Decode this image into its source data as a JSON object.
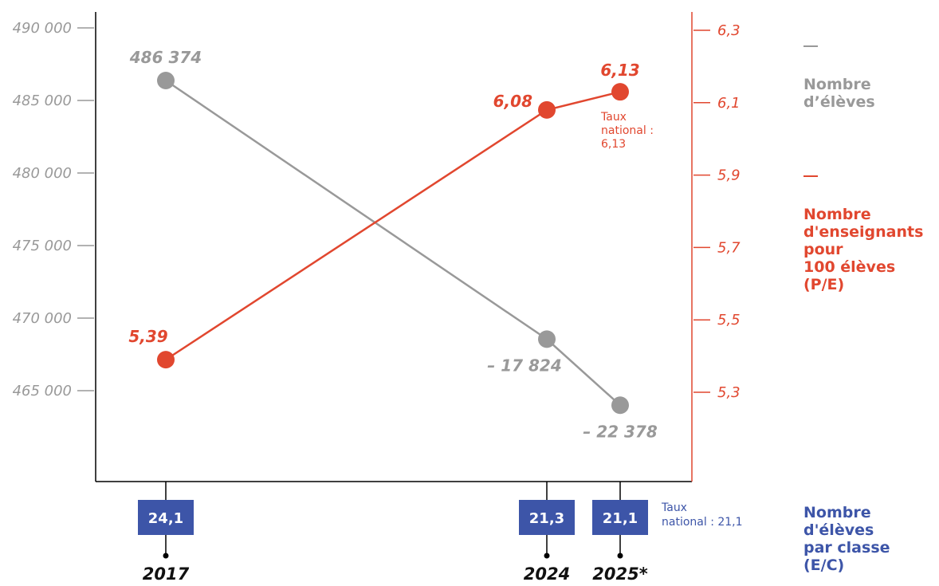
{
  "chart_data": {
    "type": "line",
    "x": [
      "2017",
      "2024",
      "2025*"
    ],
    "series": [
      {
        "name": "Nombre d’élèves",
        "axis": "left",
        "color": "#999999",
        "values": [
          486374,
          468550,
          463996
        ],
        "labels": [
          "486 374",
          "– 17 824",
          "– 22 378"
        ]
      },
      {
        "name": "Nombre d'enseignants pour 100 élèves (P/E)",
        "axis": "right",
        "color": "#e1472f",
        "values": [
          5.39,
          6.08,
          6.13
        ],
        "labels": [
          "5,39",
          "6,08",
          "6,13"
        ]
      }
    ],
    "left_axis": {
      "min": 460000,
      "max": 490000,
      "ticks": [
        490000,
        485000,
        480000,
        475000,
        470000,
        465000
      ],
      "tick_labels": [
        "490 000",
        "485 000",
        "480 000",
        "475 000",
        "470 000",
        "465 000"
      ]
    },
    "right_axis": {
      "min": 5.15,
      "max": 6.3,
      "ticks": [
        6.3,
        6.1,
        5.9,
        5.7,
        5.5,
        5.3
      ],
      "tick_labels": [
        "6,3",
        "6,1",
        "5,9",
        "5,7",
        "5,5",
        "5,3"
      ]
    },
    "eleves_par_classe": {
      "name": "Nombre d'élèves par classe (E/C)",
      "color": "#3d55a8",
      "values": [
        24.1,
        21.3,
        21.1
      ],
      "labels": [
        "24,1",
        "21,3",
        "21,1"
      ]
    },
    "annotations": {
      "taux_national_pe": [
        "Taux",
        "national :",
        "6,13"
      ],
      "taux_national_ec": [
        "Taux",
        "national : 21,1"
      ]
    },
    "legend": {
      "eleves": "Nombre\nd’élèves",
      "pe": "Nombre\nd'enseignants\npour\n100 élèves\n(P/E)",
      "ec": "Nombre\nd'élèves\npar classe\n(E/C)"
    }
  }
}
